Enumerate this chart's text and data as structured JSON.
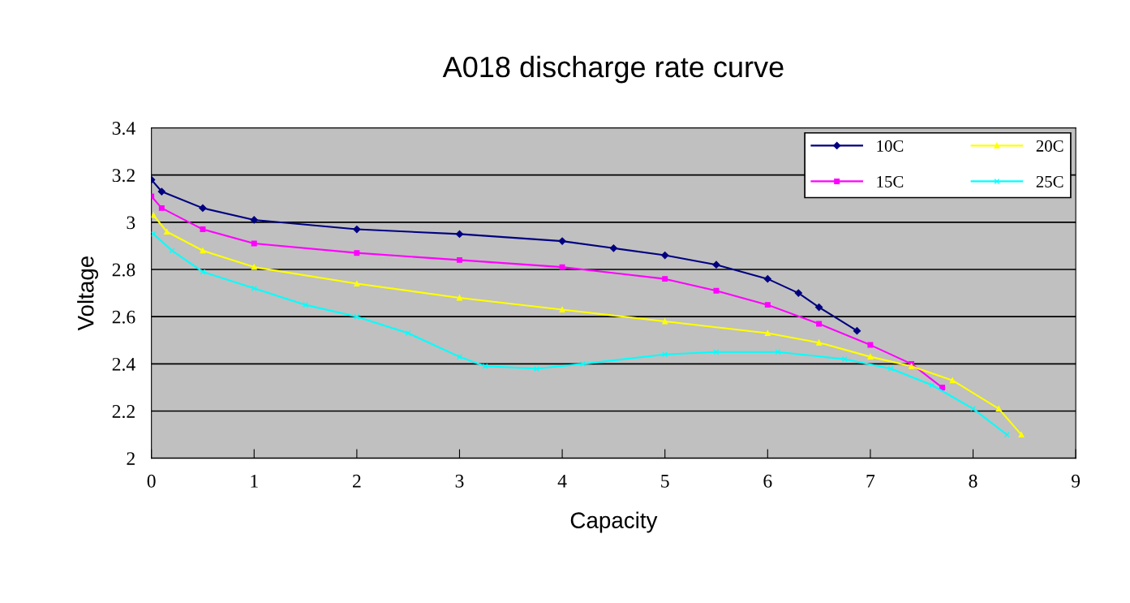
{
  "chart_data": {
    "type": "line",
    "title": "A018 discharge rate curve",
    "xlabel": "Capacity",
    "ylabel": "Voltage",
    "xlim": [
      0,
      9
    ],
    "ylim": [
      2,
      3.4
    ],
    "xticks": [
      0,
      1,
      2,
      3,
      4,
      5,
      6,
      7,
      8,
      9
    ],
    "yticks": [
      {
        "value": 2,
        "label": "2"
      },
      {
        "value": 2.2,
        "label": "2.2"
      },
      {
        "value": 2.4,
        "label": "2.4"
      },
      {
        "value": 2.6,
        "label": "2.6"
      },
      {
        "value": 2.8,
        "label": "2.8"
      },
      {
        "value": 3,
        "label": "3"
      },
      {
        "value": 3.2,
        "label": "3.2"
      },
      {
        "value": 3.4,
        "label": "3.4"
      }
    ],
    "grid": "y",
    "legend": "top right",
    "line_style": "solid",
    "series": [
      {
        "name": "10C",
        "color": "#000080",
        "marker": "diamond",
        "x": [
          0,
          0.1,
          0.5,
          1,
          2,
          3,
          4,
          4.5,
          5,
          5.5,
          6,
          6.3,
          6.5,
          6.87
        ],
        "values": [
          3.18,
          3.13,
          3.06,
          3.01,
          2.97,
          2.95,
          2.92,
          2.89,
          2.86,
          2.82,
          2.76,
          2.7,
          2.64,
          2.54
        ]
      },
      {
        "name": "15C",
        "color": "#ff00ff",
        "marker": "square",
        "x": [
          0,
          0.1,
          0.5,
          1,
          2,
          3,
          4,
          5,
          5.5,
          6,
          6.5,
          7,
          7.4,
          7.7
        ],
        "values": [
          3.11,
          3.06,
          2.97,
          2.91,
          2.87,
          2.84,
          2.81,
          2.76,
          2.71,
          2.65,
          2.57,
          2.48,
          2.4,
          2.3
        ]
      },
      {
        "name": "20C",
        "color": "#ffff00",
        "marker": "triangle",
        "x": [
          0.02,
          0.15,
          0.5,
          1,
          2,
          3,
          4,
          5,
          6,
          6.5,
          7,
          7.4,
          7.8,
          8.25,
          8.47
        ],
        "values": [
          3.03,
          2.96,
          2.88,
          2.81,
          2.74,
          2.68,
          2.63,
          2.58,
          2.53,
          2.49,
          2.43,
          2.39,
          2.33,
          2.21,
          2.1
        ]
      },
      {
        "name": "25C",
        "color": "#00ffff",
        "marker": "cross",
        "x": [
          0.02,
          0.2,
          0.5,
          1,
          1.5,
          2,
          2.5,
          3,
          3.25,
          3.75,
          4.2,
          5,
          5.5,
          6.1,
          6.75,
          7.2,
          7.6,
          8,
          8.33
        ],
        "values": [
          2.95,
          2.88,
          2.79,
          2.72,
          2.65,
          2.6,
          2.53,
          2.43,
          2.39,
          2.38,
          2.4,
          2.44,
          2.45,
          2.45,
          2.42,
          2.38,
          2.31,
          2.21,
          2.1
        ]
      }
    ]
  }
}
